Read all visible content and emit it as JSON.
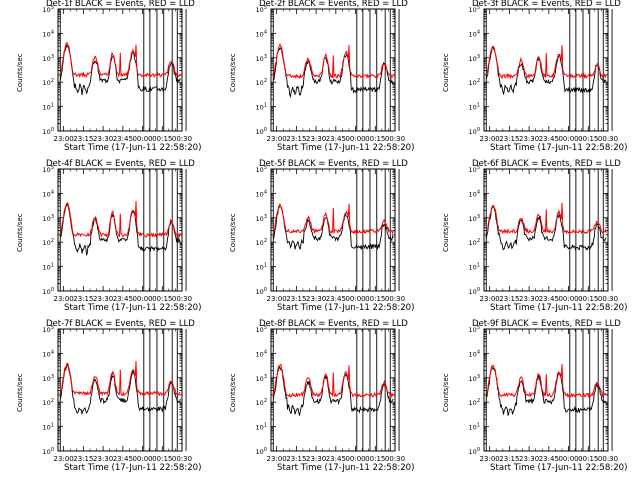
{
  "chart_data": {
    "type": "line",
    "layout": "3x3 grid of small multiples",
    "scale": {
      "y": "log",
      "y_range": [
        1,
        100000
      ]
    },
    "x_axis": {
      "ticks": [
        "23:00",
        "23:15",
        "23:30",
        "23:45",
        "00:00",
        "00:15",
        "00:30"
      ],
      "start_label": "Start Time (17-Jun-11 22:58:20)",
      "range_minutes": [
        -1.67,
        35.0
      ]
    },
    "y_axis": {
      "label": "Counts/sec",
      "ticks": [
        "10^0",
        "10^1",
        "10^2",
        "10^3",
        "10^4",
        "10^5"
      ]
    },
    "legend_text": "BLACK = Events, RED = LLD",
    "colors": {
      "events": "#000000",
      "lld": "#ff0000",
      "axes": "#000000"
    },
    "vertical_markers_minutes": [
      -1.0,
      23.7,
      25.5,
      27.6,
      29.6,
      32.1,
      33.6,
      36.2,
      38.0
    ],
    "panels": [
      {
        "title": "Det-1f BLACK = Events, RED = LLD",
        "base_lld": 200,
        "base_events": 120,
        "peak": 3500,
        "drop": 0.3
      },
      {
        "title": "Det-2f BLACK = Events, RED = LLD",
        "base_lld": 180,
        "base_events": 110,
        "peak": 3000,
        "drop": 0.25
      },
      {
        "title": "Det-3f BLACK = Events, RED = LLD",
        "base_lld": 180,
        "base_events": 110,
        "peak": 2500,
        "drop": 0.35
      },
      {
        "title": "Det-4f BLACK = Events, RED = LLD",
        "base_lld": 200,
        "base_events": 120,
        "peak": 3500,
        "drop": 0.3
      },
      {
        "title": "Det-5f BLACK = Events, RED = LLD",
        "base_lld": 280,
        "base_events": 150,
        "peak": 3000,
        "drop": 0.4
      },
      {
        "title": "Det-6f BLACK = Events, RED = LLD",
        "base_lld": 280,
        "base_events": 140,
        "peak": 2800,
        "drop": 0.4
      },
      {
        "title": "Det-7f BLACK = Events, RED = LLD",
        "base_lld": 230,
        "base_events": 120,
        "peak": 3500,
        "drop": 0.25
      },
      {
        "title": "Det-8f BLACK = Events, RED = LLD",
        "base_lld": 200,
        "base_events": 110,
        "peak": 3000,
        "drop": 0.3
      },
      {
        "title": "Det-9f BLACK = Events, RED = LLD",
        "base_lld": 200,
        "base_events": 110,
        "peak": 3000,
        "drop": 0.3
      }
    ]
  }
}
